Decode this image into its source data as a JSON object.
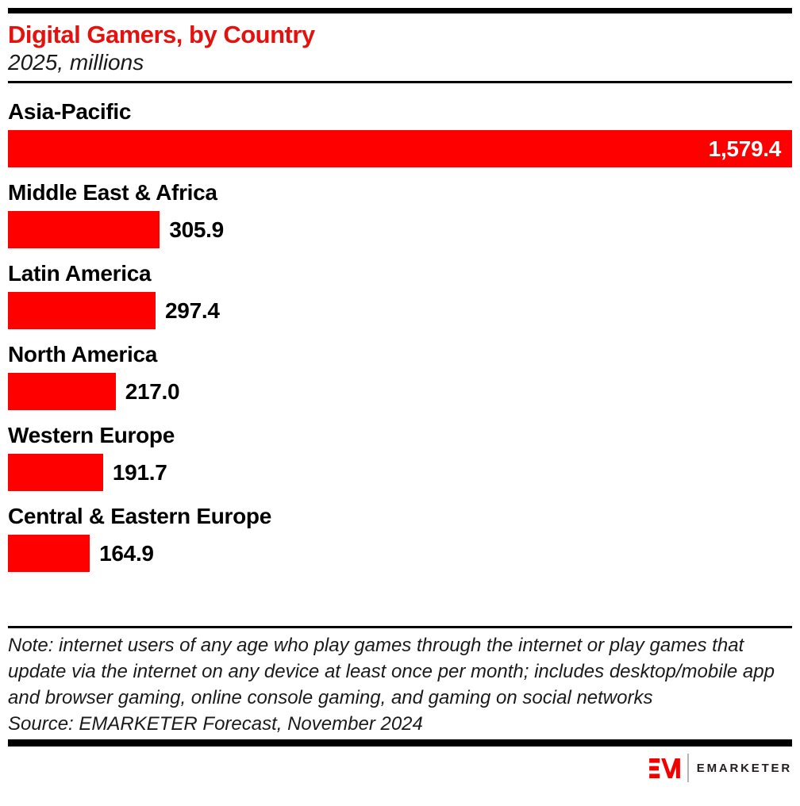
{
  "header": {
    "title": "Digital Gamers, by Country",
    "subtitle": "2025, millions"
  },
  "chart_data": {
    "type": "bar",
    "orientation": "horizontal",
    "title": "Digital Gamers, by Country",
    "subtitle": "2025, millions",
    "unit": "millions",
    "categories": [
      "Asia-Pacific",
      "Middle East & Africa",
      "Latin America",
      "North America",
      "Western Europe",
      "Central & Eastern Europe"
    ],
    "values": [
      1579.4,
      305.9,
      297.4,
      217.0,
      191.7,
      164.9
    ],
    "value_labels": [
      "1,579.4",
      "305.9",
      "297.4",
      "217.0",
      "191.7",
      "164.9"
    ],
    "xlim": [
      0,
      1579.4
    ],
    "grid": false,
    "legend": false,
    "bar_color": "#ff0000",
    "value_label_inside_threshold_pct": 60
  },
  "footer": {
    "note_lines": [
      "Note: internet users of any age who play games through the internet or play games that",
      "update via the internet on any device at least once per month; includes desktop/mobile app",
      "and browser gaming, online console gaming, and gaming on social networks"
    ],
    "source": "Source: EMARKETER Forecast, November 2024"
  },
  "branding": {
    "logo_monogram": "EM",
    "logo_text": "EMARKETER",
    "brand_red": "#f20000",
    "title_red": "#e3120e"
  }
}
